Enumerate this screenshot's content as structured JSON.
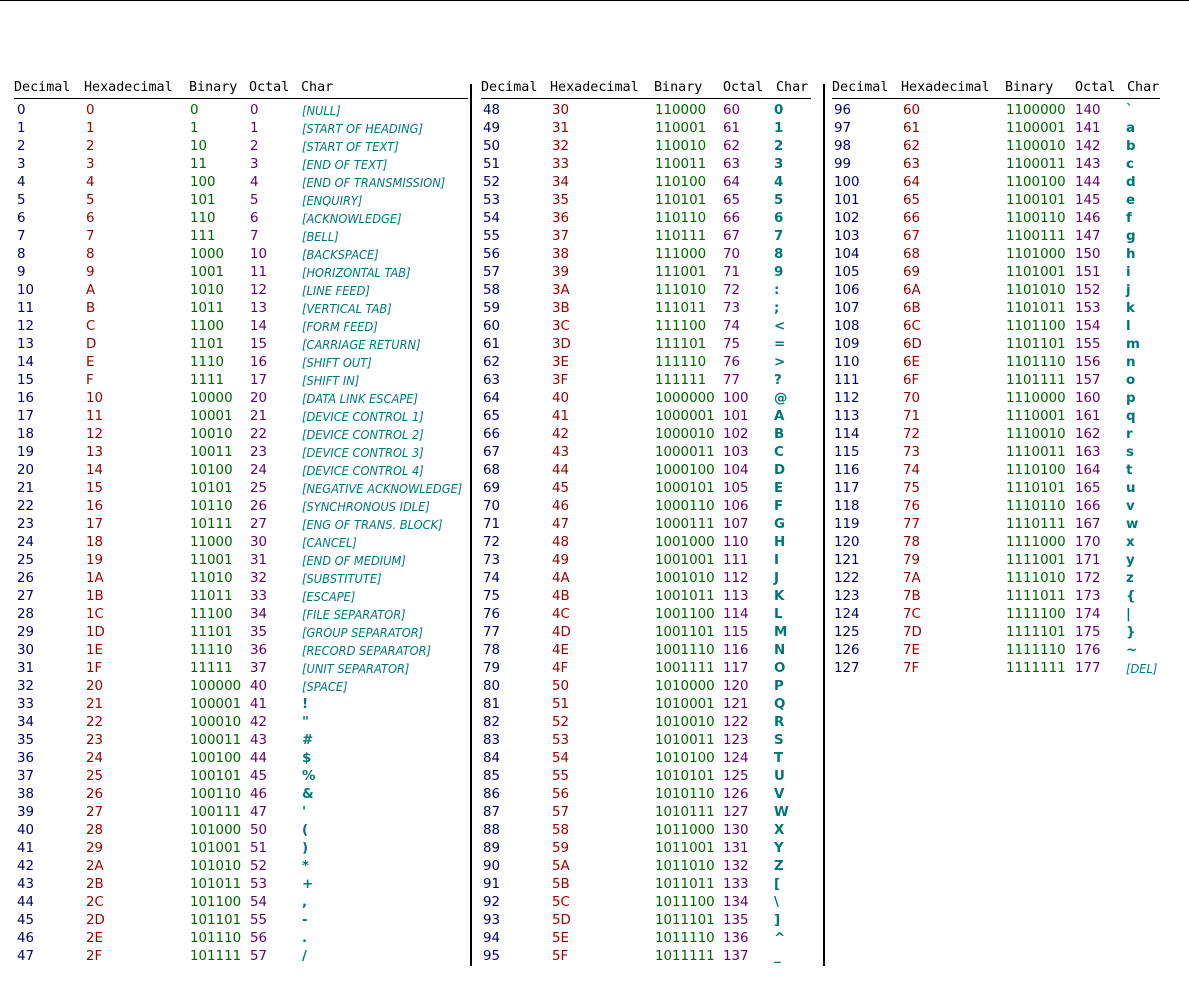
{
  "headers": [
    "Decimal",
    "Hexadecimal",
    "Binary",
    "Octal",
    "Char"
  ],
  "colors": {
    "decimal": "#000066",
    "hexadecimal": "#990000",
    "binary": "#006600",
    "octal": "#660066",
    "char": "#007777"
  },
  "rows": [
    [
      "0",
      "0",
      "0",
      "0",
      "[NULL]"
    ],
    [
      "1",
      "1",
      "1",
      "1",
      "[START OF HEADING]"
    ],
    [
      "2",
      "2",
      "10",
      "2",
      "[START OF TEXT]"
    ],
    [
      "3",
      "3",
      "11",
      "3",
      "[END OF TEXT]"
    ],
    [
      "4",
      "4",
      "100",
      "4",
      "[END OF TRANSMISSION]"
    ],
    [
      "5",
      "5",
      "101",
      "5",
      "[ENQUIRY]"
    ],
    [
      "6",
      "6",
      "110",
      "6",
      "[ACKNOWLEDGE]"
    ],
    [
      "7",
      "7",
      "111",
      "7",
      "[BELL]"
    ],
    [
      "8",
      "8",
      "1000",
      "10",
      "[BACKSPACE]"
    ],
    [
      "9",
      "9",
      "1001",
      "11",
      "[HORIZONTAL TAB]"
    ],
    [
      "10",
      "A",
      "1010",
      "12",
      "[LINE FEED]"
    ],
    [
      "11",
      "B",
      "1011",
      "13",
      "[VERTICAL TAB]"
    ],
    [
      "12",
      "C",
      "1100",
      "14",
      "[FORM FEED]"
    ],
    [
      "13",
      "D",
      "1101",
      "15",
      "[CARRIAGE RETURN]"
    ],
    [
      "14",
      "E",
      "1110",
      "16",
      "[SHIFT OUT]"
    ],
    [
      "15",
      "F",
      "1111",
      "17",
      "[SHIFT IN]"
    ],
    [
      "16",
      "10",
      "10000",
      "20",
      "[DATA LINK ESCAPE]"
    ],
    [
      "17",
      "11",
      "10001",
      "21",
      "[DEVICE CONTROL 1]"
    ],
    [
      "18",
      "12",
      "10010",
      "22",
      "[DEVICE CONTROL 2]"
    ],
    [
      "19",
      "13",
      "10011",
      "23",
      "[DEVICE CONTROL 3]"
    ],
    [
      "20",
      "14",
      "10100",
      "24",
      "[DEVICE CONTROL 4]"
    ],
    [
      "21",
      "15",
      "10101",
      "25",
      "[NEGATIVE ACKNOWLEDGE]"
    ],
    [
      "22",
      "16",
      "10110",
      "26",
      "[SYNCHRONOUS IDLE]"
    ],
    [
      "23",
      "17",
      "10111",
      "27",
      "[ENG OF TRANS. BLOCK]"
    ],
    [
      "24",
      "18",
      "11000",
      "30",
      "[CANCEL]"
    ],
    [
      "25",
      "19",
      "11001",
      "31",
      "[END OF MEDIUM]"
    ],
    [
      "26",
      "1A",
      "11010",
      "32",
      "[SUBSTITUTE]"
    ],
    [
      "27",
      "1B",
      "11011",
      "33",
      "[ESCAPE]"
    ],
    [
      "28",
      "1C",
      "11100",
      "34",
      "[FILE SEPARATOR]"
    ],
    [
      "29",
      "1D",
      "11101",
      "35",
      "[GROUP SEPARATOR]"
    ],
    [
      "30",
      "1E",
      "11110",
      "36",
      "[RECORD SEPARATOR]"
    ],
    [
      "31",
      "1F",
      "11111",
      "37",
      "[UNIT SEPARATOR]"
    ],
    [
      "32",
      "20",
      "100000",
      "40",
      "[SPACE]"
    ],
    [
      "33",
      "21",
      "100001",
      "41",
      "!"
    ],
    [
      "34",
      "22",
      "100010",
      "42",
      "\""
    ],
    [
      "35",
      "23",
      "100011",
      "43",
      "#"
    ],
    [
      "36",
      "24",
      "100100",
      "44",
      "$"
    ],
    [
      "37",
      "25",
      "100101",
      "45",
      "%"
    ],
    [
      "38",
      "26",
      "100110",
      "46",
      "&"
    ],
    [
      "39",
      "27",
      "100111",
      "47",
      "'"
    ],
    [
      "40",
      "28",
      "101000",
      "50",
      "("
    ],
    [
      "41",
      "29",
      "101001",
      "51",
      ")"
    ],
    [
      "42",
      "2A",
      "101010",
      "52",
      "*"
    ],
    [
      "43",
      "2B",
      "101011",
      "53",
      "+"
    ],
    [
      "44",
      "2C",
      "101100",
      "54",
      ","
    ],
    [
      "45",
      "2D",
      "101101",
      "55",
      "-"
    ],
    [
      "46",
      "2E",
      "101110",
      "56",
      "."
    ],
    [
      "47",
      "2F",
      "101111",
      "57",
      "/"
    ],
    [
      "48",
      "30",
      "110000",
      "60",
      "0"
    ],
    [
      "49",
      "31",
      "110001",
      "61",
      "1"
    ],
    [
      "50",
      "32",
      "110010",
      "62",
      "2"
    ],
    [
      "51",
      "33",
      "110011",
      "63",
      "3"
    ],
    [
      "52",
      "34",
      "110100",
      "64",
      "4"
    ],
    [
      "53",
      "35",
      "110101",
      "65",
      "5"
    ],
    [
      "54",
      "36",
      "110110",
      "66",
      "6"
    ],
    [
      "55",
      "37",
      "110111",
      "67",
      "7"
    ],
    [
      "56",
      "38",
      "111000",
      "70",
      "8"
    ],
    [
      "57",
      "39",
      "111001",
      "71",
      "9"
    ],
    [
      "58",
      "3A",
      "111010",
      "72",
      ":"
    ],
    [
      "59",
      "3B",
      "111011",
      "73",
      ";"
    ],
    [
      "60",
      "3C",
      "111100",
      "74",
      "<"
    ],
    [
      "61",
      "3D",
      "111101",
      "75",
      "="
    ],
    [
      "62",
      "3E",
      "111110",
      "76",
      ">"
    ],
    [
      "63",
      "3F",
      "111111",
      "77",
      "?"
    ],
    [
      "64",
      "40",
      "1000000",
      "100",
      "@"
    ],
    [
      "65",
      "41",
      "1000001",
      "101",
      "A"
    ],
    [
      "66",
      "42",
      "1000010",
      "102",
      "B"
    ],
    [
      "67",
      "43",
      "1000011",
      "103",
      "C"
    ],
    [
      "68",
      "44",
      "1000100",
      "104",
      "D"
    ],
    [
      "69",
      "45",
      "1000101",
      "105",
      "E"
    ],
    [
      "70",
      "46",
      "1000110",
      "106",
      "F"
    ],
    [
      "71",
      "47",
      "1000111",
      "107",
      "G"
    ],
    [
      "72",
      "48",
      "1001000",
      "110",
      "H"
    ],
    [
      "73",
      "49",
      "1001001",
      "111",
      "I"
    ],
    [
      "74",
      "4A",
      "1001010",
      "112",
      "J"
    ],
    [
      "75",
      "4B",
      "1001011",
      "113",
      "K"
    ],
    [
      "76",
      "4C",
      "1001100",
      "114",
      "L"
    ],
    [
      "77",
      "4D",
      "1001101",
      "115",
      "M"
    ],
    [
      "78",
      "4E",
      "1001110",
      "116",
      "N"
    ],
    [
      "79",
      "4F",
      "1001111",
      "117",
      "O"
    ],
    [
      "80",
      "50",
      "1010000",
      "120",
      "P"
    ],
    [
      "81",
      "51",
      "1010001",
      "121",
      "Q"
    ],
    [
      "82",
      "52",
      "1010010",
      "122",
      "R"
    ],
    [
      "83",
      "53",
      "1010011",
      "123",
      "S"
    ],
    [
      "84",
      "54",
      "1010100",
      "124",
      "T"
    ],
    [
      "85",
      "55",
      "1010101",
      "125",
      "U"
    ],
    [
      "86",
      "56",
      "1010110",
      "126",
      "V"
    ],
    [
      "87",
      "57",
      "1010111",
      "127",
      "W"
    ],
    [
      "88",
      "58",
      "1011000",
      "130",
      "X"
    ],
    [
      "89",
      "59",
      "1011001",
      "131",
      "Y"
    ],
    [
      "90",
      "5A",
      "1011010",
      "132",
      "Z"
    ],
    [
      "91",
      "5B",
      "1011011",
      "133",
      "["
    ],
    [
      "92",
      "5C",
      "1011100",
      "134",
      "\\"
    ],
    [
      "93",
      "5D",
      "1011101",
      "135",
      "]"
    ],
    [
      "94",
      "5E",
      "1011110",
      "136",
      "^"
    ],
    [
      "95",
      "5F",
      "1011111",
      "137",
      "_"
    ],
    [
      "96",
      "60",
      "1100000",
      "140",
      "`"
    ],
    [
      "97",
      "61",
      "1100001",
      "141",
      "a"
    ],
    [
      "98",
      "62",
      "1100010",
      "142",
      "b"
    ],
    [
      "99",
      "63",
      "1100011",
      "143",
      "c"
    ],
    [
      "100",
      "64",
      "1100100",
      "144",
      "d"
    ],
    [
      "101",
      "65",
      "1100101",
      "145",
      "e"
    ],
    [
      "102",
      "66",
      "1100110",
      "146",
      "f"
    ],
    [
      "103",
      "67",
      "1100111",
      "147",
      "g"
    ],
    [
      "104",
      "68",
      "1101000",
      "150",
      "h"
    ],
    [
      "105",
      "69",
      "1101001",
      "151",
      "i"
    ],
    [
      "106",
      "6A",
      "1101010",
      "152",
      "j"
    ],
    [
      "107",
      "6B",
      "1101011",
      "153",
      "k"
    ],
    [
      "108",
      "6C",
      "1101100",
      "154",
      "l"
    ],
    [
      "109",
      "6D",
      "1101101",
      "155",
      "m"
    ],
    [
      "110",
      "6E",
      "1101110",
      "156",
      "n"
    ],
    [
      "111",
      "6F",
      "1101111",
      "157",
      "o"
    ],
    [
      "112",
      "70",
      "1110000",
      "160",
      "p"
    ],
    [
      "113",
      "71",
      "1110001",
      "161",
      "q"
    ],
    [
      "114",
      "72",
      "1110010",
      "162",
      "r"
    ],
    [
      "115",
      "73",
      "1110011",
      "163",
      "s"
    ],
    [
      "116",
      "74",
      "1110100",
      "164",
      "t"
    ],
    [
      "117",
      "75",
      "1110101",
      "165",
      "u"
    ],
    [
      "118",
      "76",
      "1110110",
      "166",
      "v"
    ],
    [
      "119",
      "77",
      "1110111",
      "167",
      "w"
    ],
    [
      "120",
      "78",
      "1111000",
      "170",
      "x"
    ],
    [
      "121",
      "79",
      "1111001",
      "171",
      "y"
    ],
    [
      "122",
      "7A",
      "1111010",
      "172",
      "z"
    ],
    [
      "123",
      "7B",
      "1111011",
      "173",
      "{"
    ],
    [
      "124",
      "7C",
      "1111100",
      "174",
      "|"
    ],
    [
      "125",
      "7D",
      "1111101",
      "175",
      "}"
    ],
    [
      "126",
      "7E",
      "1111110",
      "176",
      "~"
    ],
    [
      "127",
      "7F",
      "1111111",
      "177",
      "[DEL]"
    ]
  ]
}
